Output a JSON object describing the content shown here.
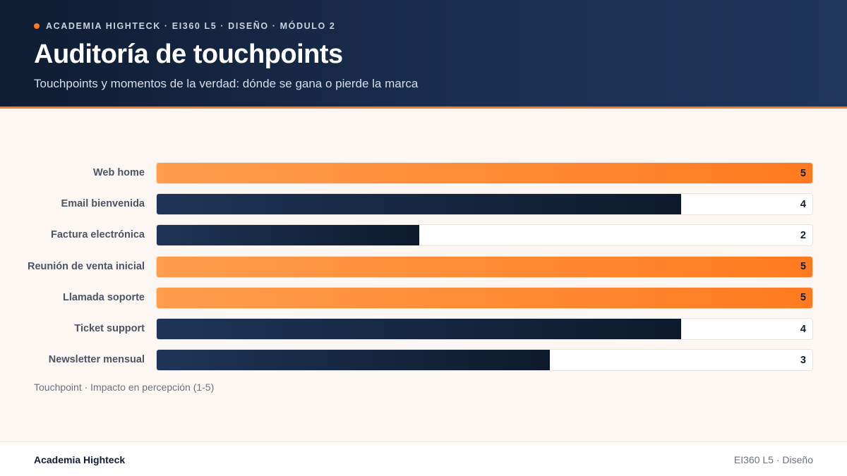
{
  "header": {
    "eyebrow": "ACADEMIA HIGHTECK · EI360 L5 · DISEÑO · MÓDULO 2",
    "title": "Auditoría de touchpoints",
    "subtitle": "Touchpoints y momentos de la verdad: dónde se gana o pierde la marca"
  },
  "chart_data": {
    "type": "bar",
    "orientation": "horizontal",
    "categories": [
      "Web home",
      "Email bienvenida",
      "Factura electrónica",
      "Reunión de venta inicial",
      "Llamada soporte",
      "Ticket support",
      "Newsletter mensual"
    ],
    "values": [
      5,
      4,
      2,
      5,
      5,
      4,
      3
    ],
    "value_labels": [
      "5",
      "4",
      "2",
      "5",
      "5",
      "4",
      "3"
    ],
    "xlim": [
      0,
      5
    ],
    "highlight_value": 5,
    "colors": {
      "highlight": "#ff7a1f",
      "default": "#0f1d33"
    },
    "caption": "Touchpoint · Impacto en percepción (1-5)"
  },
  "footer": {
    "brand": "Academia Highteck",
    "course": "EI360 L5 · Diseño"
  }
}
